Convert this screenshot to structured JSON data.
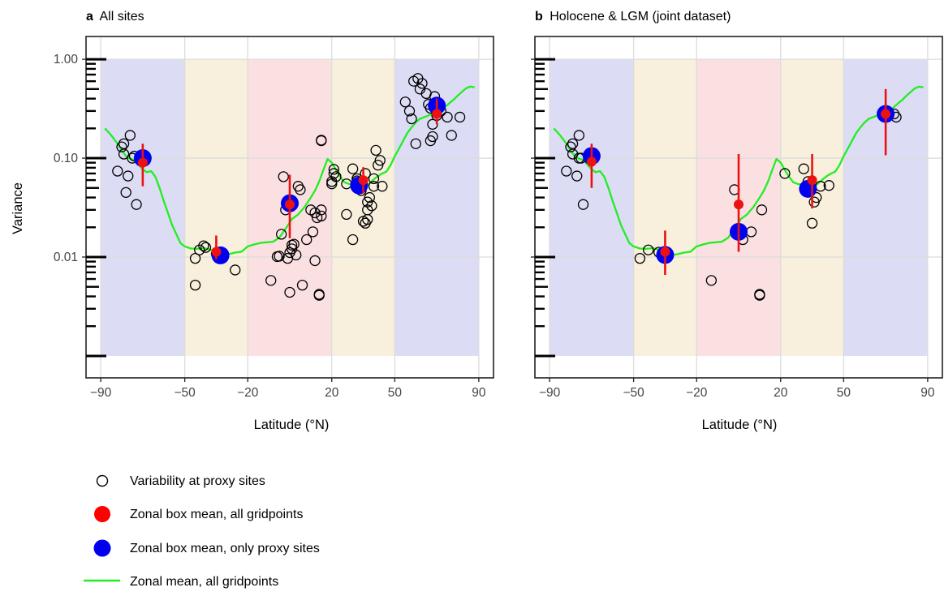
{
  "chart_data": [
    {
      "type": "scatter",
      "panel_tag": "a",
      "title": "All sites",
      "xlabel": "Latitude (°N)",
      "ylabel": "Variance",
      "x_ticks": [
        -90,
        -50,
        -20,
        20,
        50,
        90
      ],
      "x_tick_labels": [
        "−90",
        "−50",
        "−20",
        "20",
        "50",
        "90"
      ],
      "y_scale": "log",
      "y_ticks": [
        0.01,
        0.1,
        1.0
      ],
      "y_tick_labels": [
        "0.01",
        "0.10",
        "1.00"
      ],
      "xlim": [
        -97,
        97
      ],
      "ylim": [
        0.0006,
        1.7
      ],
      "grid": true,
      "zones": [
        {
          "from": -90,
          "to": -50,
          "color": "#dcdcf5"
        },
        {
          "from": -50,
          "to": -20,
          "color": "#f8efdd"
        },
        {
          "from": -20,
          "to": 20,
          "color": "#fbe0e2"
        },
        {
          "from": 20,
          "to": 50,
          "color": "#f8efdd"
        },
        {
          "from": 50,
          "to": 90,
          "color": "#dcdcf5"
        }
      ],
      "proxy_sites": [
        [
          -82,
          0.074
        ],
        [
          -80,
          0.13
        ],
        [
          -79,
          0.14
        ],
        [
          -79,
          0.11
        ],
        [
          -78,
          0.045
        ],
        [
          -77,
          0.066
        ],
        [
          -76,
          0.17
        ],
        [
          -75,
          0.1
        ],
        [
          -74,
          0.105
        ],
        [
          -73,
          0.034
        ],
        [
          -45,
          0.0097
        ],
        [
          -45,
          0.0052
        ],
        [
          -43,
          0.0118
        ],
        [
          -41,
          0.013
        ],
        [
          -40,
          0.0125
        ],
        [
          -35,
          0.0108
        ],
        [
          -33,
          0.0101
        ],
        [
          -26,
          0.0074
        ],
        [
          -9,
          0.0058
        ],
        [
          -6,
          0.0101
        ],
        [
          -5,
          0.0102
        ],
        [
          -4,
          0.017
        ],
        [
          -3,
          0.065
        ],
        [
          -2,
          0.03
        ],
        [
          -1,
          0.0097
        ],
        [
          0,
          0.0044
        ],
        [
          0,
          0.0111
        ],
        [
          1,
          0.0121
        ],
        [
          1,
          0.0132
        ],
        [
          2,
          0.0135
        ],
        [
          3,
          0.0105
        ],
        [
          4,
          0.052
        ],
        [
          5,
          0.048
        ],
        [
          6,
          0.0052
        ],
        [
          8,
          0.015
        ],
        [
          10,
          0.03
        ],
        [
          11,
          0.018
        ],
        [
          12,
          0.028
        ],
        [
          12,
          0.0092
        ],
        [
          13,
          0.025
        ],
        [
          14,
          0.0042
        ],
        [
          14,
          0.0041
        ],
        [
          15,
          0.03
        ],
        [
          15,
          0.026
        ],
        [
          15,
          0.15
        ],
        [
          15,
          0.152
        ],
        [
          20,
          0.058
        ],
        [
          20,
          0.055
        ],
        [
          21,
          0.077
        ],
        [
          21,
          0.07
        ],
        [
          22,
          0.065
        ],
        [
          27,
          0.055
        ],
        [
          27,
          0.027
        ],
        [
          30,
          0.078
        ],
        [
          30,
          0.015
        ],
        [
          32,
          0.062
        ],
        [
          32,
          0.059
        ],
        [
          34,
          0.052
        ],
        [
          34,
          0.047
        ],
        [
          35,
          0.023
        ],
        [
          36,
          0.07
        ],
        [
          36,
          0.022
        ],
        [
          37,
          0.036
        ],
        [
          37,
          0.03
        ],
        [
          37,
          0.024
        ],
        [
          38,
          0.04
        ],
        [
          39,
          0.033
        ],
        [
          40,
          0.052
        ],
        [
          40,
          0.062
        ],
        [
          41,
          0.12
        ],
        [
          42,
          0.085
        ],
        [
          43,
          0.095
        ],
        [
          44,
          0.052
        ],
        [
          55,
          0.37
        ],
        [
          57,
          0.3
        ],
        [
          58,
          0.25
        ],
        [
          59,
          0.6
        ],
        [
          60,
          0.14
        ],
        [
          61,
          0.64
        ],
        [
          62,
          0.5
        ],
        [
          63,
          0.57
        ],
        [
          65,
          0.45
        ],
        [
          66,
          0.35
        ],
        [
          67,
          0.15
        ],
        [
          67,
          0.32
        ],
        [
          68,
          0.22
        ],
        [
          68,
          0.165
        ],
        [
          69,
          0.42
        ],
        [
          70,
          0.27
        ],
        [
          72,
          0.3
        ],
        [
          75,
          0.26
        ],
        [
          77,
          0.17
        ],
        [
          81,
          0.26
        ]
      ],
      "box_mean_all_gridpoints": [
        {
          "x": -70,
          "y": 0.09,
          "lo": 0.052,
          "hi": 0.14
        },
        {
          "x": -35,
          "y": 0.0113,
          "lo": 0.0095,
          "hi": 0.0165
        },
        {
          "x": 0,
          "y": 0.034,
          "lo": 0.0155,
          "hi": 0.068
        },
        {
          "x": 35,
          "y": 0.06,
          "lo": 0.044,
          "hi": 0.081
        },
        {
          "x": 70,
          "y": 0.28,
          "lo": 0.22,
          "hi": 0.4
        }
      ],
      "box_mean_proxy_sites": [
        {
          "x": -70,
          "y": 0.1
        },
        {
          "x": -33,
          "y": 0.0104
        },
        {
          "x": 0,
          "y": 0.035
        },
        {
          "x": 33,
          "y": 0.053
        },
        {
          "x": 70,
          "y": 0.34
        }
      ],
      "zonal_mean_all_gridpoints": [
        [
          -88,
          0.2
        ],
        [
          -85,
          0.17
        ],
        [
          -82,
          0.14
        ],
        [
          -80,
          0.12
        ],
        [
          -78,
          0.105
        ],
        [
          -76,
          0.099
        ],
        [
          -74,
          0.096
        ],
        [
          -72,
          0.086
        ],
        [
          -70,
          0.077
        ],
        [
          -68,
          0.072
        ],
        [
          -66,
          0.074
        ],
        [
          -64,
          0.065
        ],
        [
          -62,
          0.05
        ],
        [
          -60,
          0.037
        ],
        [
          -58,
          0.028
        ],
        [
          -56,
          0.021
        ],
        [
          -54,
          0.017
        ],
        [
          -52,
          0.0138
        ],
        [
          -50,
          0.0128
        ],
        [
          -47,
          0.0122
        ],
        [
          -44,
          0.0121
        ],
        [
          -41,
          0.0123
        ],
        [
          -38,
          0.0119
        ],
        [
          -35,
          0.0113
        ],
        [
          -32,
          0.0104
        ],
        [
          -29,
          0.0107
        ],
        [
          -26,
          0.0111
        ],
        [
          -23,
          0.0113
        ],
        [
          -20,
          0.0128
        ],
        [
          -17,
          0.0134
        ],
        [
          -14,
          0.0139
        ],
        [
          -11,
          0.0141
        ],
        [
          -8,
          0.0143
        ],
        [
          -5,
          0.0157
        ],
        [
          -2,
          0.0193
        ],
        [
          1,
          0.0242
        ],
        [
          4,
          0.027
        ],
        [
          7,
          0.032
        ],
        [
          10,
          0.04
        ],
        [
          12,
          0.047
        ],
        [
          14,
          0.058
        ],
        [
          16,
          0.076
        ],
        [
          18,
          0.098
        ],
        [
          20,
          0.09
        ],
        [
          22,
          0.076
        ],
        [
          24,
          0.065
        ],
        [
          26,
          0.057
        ],
        [
          28,
          0.055
        ],
        [
          30,
          0.054
        ],
        [
          32,
          0.055
        ],
        [
          34,
          0.052
        ],
        [
          36,
          0.051
        ],
        [
          38,
          0.056
        ],
        [
          40,
          0.061
        ],
        [
          42,
          0.066
        ],
        [
          44,
          0.07
        ],
        [
          46,
          0.073
        ],
        [
          48,
          0.085
        ],
        [
          50,
          0.105
        ],
        [
          52,
          0.125
        ],
        [
          54,
          0.15
        ],
        [
          56,
          0.18
        ],
        [
          58,
          0.205
        ],
        [
          60,
          0.23
        ],
        [
          62,
          0.25
        ],
        [
          64,
          0.26
        ],
        [
          66,
          0.27
        ],
        [
          68,
          0.28
        ],
        [
          70,
          0.29
        ],
        [
          72,
          0.3
        ],
        [
          74,
          0.33
        ],
        [
          76,
          0.36
        ],
        [
          78,
          0.39
        ],
        [
          80,
          0.43
        ],
        [
          82,
          0.47
        ],
        [
          84,
          0.51
        ],
        [
          86,
          0.53
        ],
        [
          88,
          0.52
        ]
      ]
    },
    {
      "type": "scatter",
      "panel_tag": "b",
      "title": "Holocene & LGM (joint dataset)",
      "xlabel": "Latitude (°N)",
      "ylabel": "",
      "x_ticks": [
        -90,
        -50,
        -20,
        20,
        50,
        90
      ],
      "x_tick_labels": [
        "−90",
        "−50",
        "−20",
        "20",
        "50",
        "90"
      ],
      "y_scale": "log",
      "y_ticks": [
        0.01,
        0.1,
        1.0
      ],
      "y_tick_labels": [],
      "xlim": [
        -97,
        97
      ],
      "ylim": [
        0.0006,
        1.7
      ],
      "grid": true,
      "zones": [
        {
          "from": -90,
          "to": -50,
          "color": "#dcdcf5"
        },
        {
          "from": -50,
          "to": -20,
          "color": "#f8efdd"
        },
        {
          "from": -20,
          "to": 20,
          "color": "#fbe0e2"
        },
        {
          "from": 20,
          "to": 50,
          "color": "#f8efdd"
        },
        {
          "from": 50,
          "to": 90,
          "color": "#dcdcf5"
        }
      ],
      "proxy_sites": [
        [
          -82,
          0.074
        ],
        [
          -80,
          0.13
        ],
        [
          -79,
          0.14
        ],
        [
          -79,
          0.11
        ],
        [
          -77,
          0.066
        ],
        [
          -76,
          0.1
        ],
        [
          -76,
          0.17
        ],
        [
          -75,
          0.1
        ],
        [
          -74,
          0.034
        ],
        [
          -47,
          0.0097
        ],
        [
          -43,
          0.0118
        ],
        [
          -38,
          0.0112
        ],
        [
          -13,
          0.0058
        ],
        [
          -2,
          0.048
        ],
        [
          0,
          0.0175
        ],
        [
          2,
          0.015
        ],
        [
          6,
          0.018
        ],
        [
          10,
          0.0042
        ],
        [
          10,
          0.0041
        ],
        [
          11,
          0.03
        ],
        [
          22,
          0.07
        ],
        [
          31,
          0.078
        ],
        [
          33,
          0.058
        ],
        [
          35,
          0.022
        ],
        [
          36,
          0.036
        ],
        [
          37,
          0.04
        ],
        [
          39,
          0.052
        ],
        [
          43,
          0.053
        ],
        [
          74,
          0.28
        ],
        [
          75,
          0.26
        ]
      ],
      "box_mean_all_gridpoints": [
        {
          "x": -70,
          "y": 0.092,
          "lo": 0.05,
          "hi": 0.14
        },
        {
          "x": -35,
          "y": 0.0113,
          "lo": 0.0066,
          "hi": 0.0185
        },
        {
          "x": 0,
          "y": 0.034,
          "lo": 0.0113,
          "hi": 0.11
        },
        {
          "x": 35,
          "y": 0.06,
          "lo": 0.031,
          "hi": 0.11
        },
        {
          "x": 70,
          "y": 0.28,
          "lo": 0.107,
          "hi": 0.5
        }
      ],
      "box_mean_proxy_sites": [
        {
          "x": -70,
          "y": 0.105
        },
        {
          "x": -35,
          "y": 0.0105
        },
        {
          "x": 0,
          "y": 0.018
        },
        {
          "x": 33,
          "y": 0.049
        },
        {
          "x": 70,
          "y": 0.28
        }
      ],
      "zonal_mean_all_gridpoints": "same"
    }
  ],
  "legend": {
    "items": [
      {
        "label": "Variability at proxy sites",
        "symbol": "open-circle"
      },
      {
        "label": "Zonal box mean, all gridpoints",
        "symbol": "red-dot",
        "color": "#ff0000"
      },
      {
        "label": "Zonal box mean, only proxy sites",
        "symbol": "blue-dot",
        "color": "#0000ee"
      },
      {
        "label": "Zonal mean, all gridpoints",
        "symbol": "green-line",
        "color": "#22ee22"
      }
    ]
  },
  "colors": {
    "red": "#ee1111",
    "blue": "#0000ee",
    "green": "#22ee22"
  }
}
